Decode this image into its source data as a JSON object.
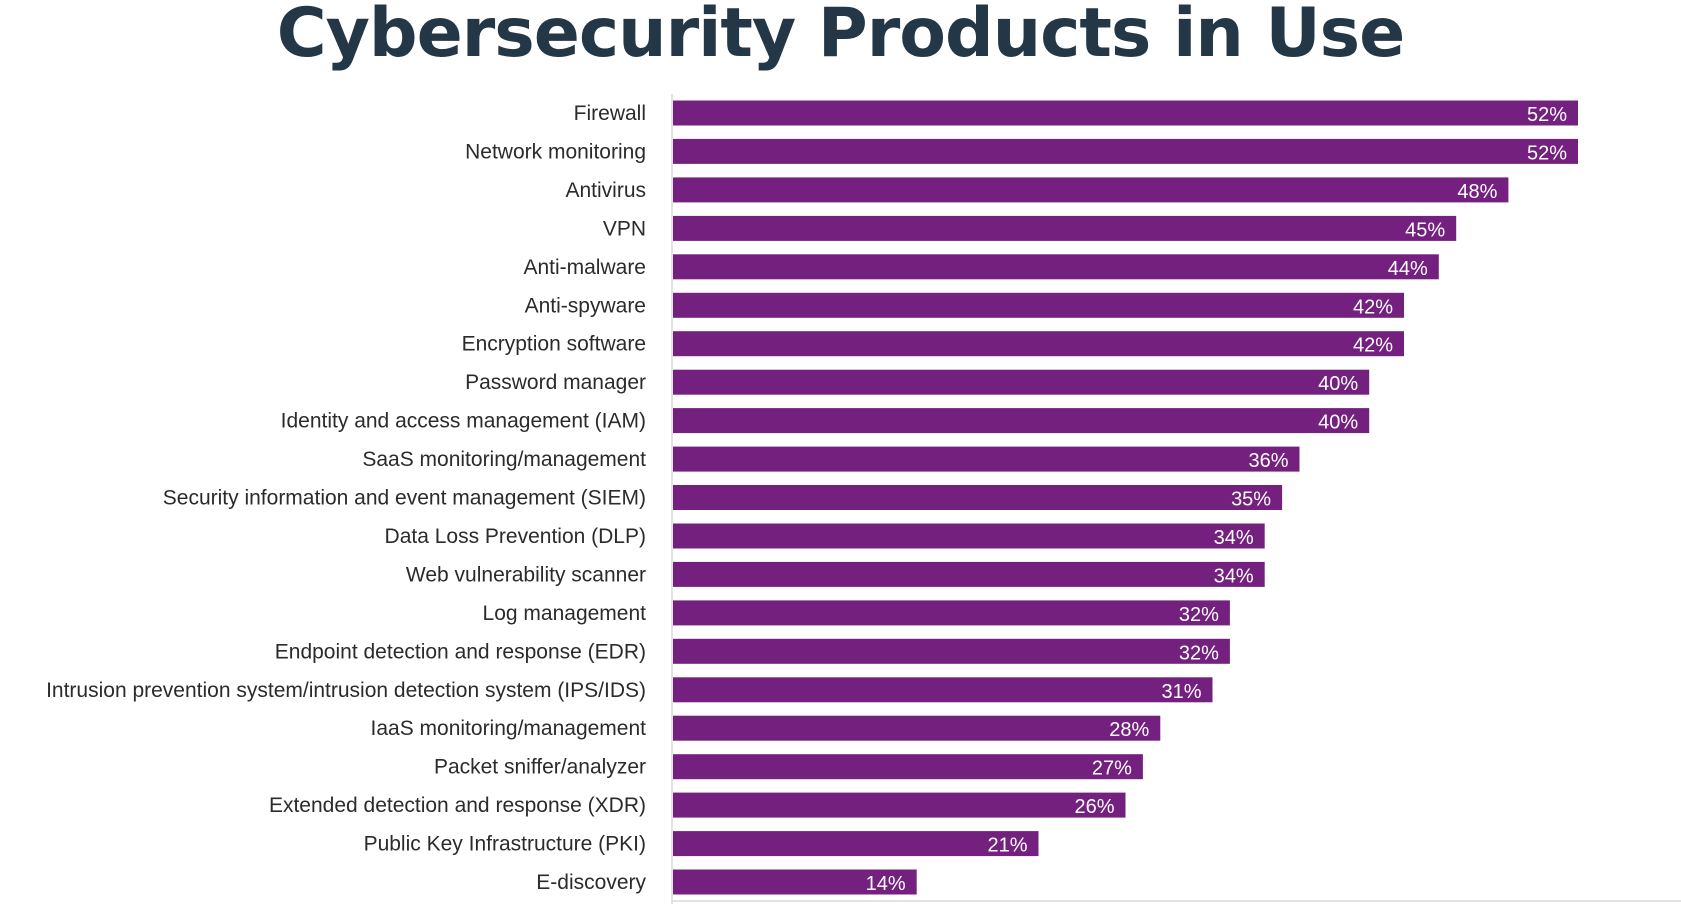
{
  "chart_data": {
    "type": "bar",
    "orientation": "horizontal",
    "title": "Cybersecurity Products in Use",
    "xlabel": "",
    "ylabel": "",
    "xlim": [
      0,
      52
    ],
    "value_suffix": "%",
    "bar_color": "#74207f",
    "title_color": "#243746",
    "categories": [
      "Firewall",
      "Network monitoring",
      "Antivirus",
      "VPN",
      "Anti-malware",
      "Anti-spyware",
      "Encryption software",
      "Password manager",
      "Identity and access management (IAM)",
      "SaaS monitoring/management",
      "Security information and event management (SIEM)",
      "Data Loss Prevention (DLP)",
      "Web vulnerability scanner",
      "Log management",
      "Endpoint detection and response (EDR)",
      "Intrusion prevention system/intrusion detection system (IPS/IDS)",
      "IaaS monitoring/management",
      "Packet sniffer/analyzer",
      "Extended detection and response (XDR)",
      "Public Key Infrastructure (PKI)",
      "E-discovery"
    ],
    "values": [
      52,
      52,
      48,
      45,
      44,
      42,
      42,
      40,
      40,
      36,
      35,
      34,
      34,
      32,
      32,
      31,
      28,
      27,
      26,
      21,
      14
    ],
    "value_labels": [
      "52%",
      "52%",
      "48%",
      "45%",
      "44%",
      "42%",
      "42%",
      "40%",
      "40%",
      "36%",
      "35%",
      "34%",
      "34%",
      "32%",
      "32%",
      "31%",
      "28%",
      "27%",
      "26%",
      "21%",
      "14%"
    ]
  }
}
